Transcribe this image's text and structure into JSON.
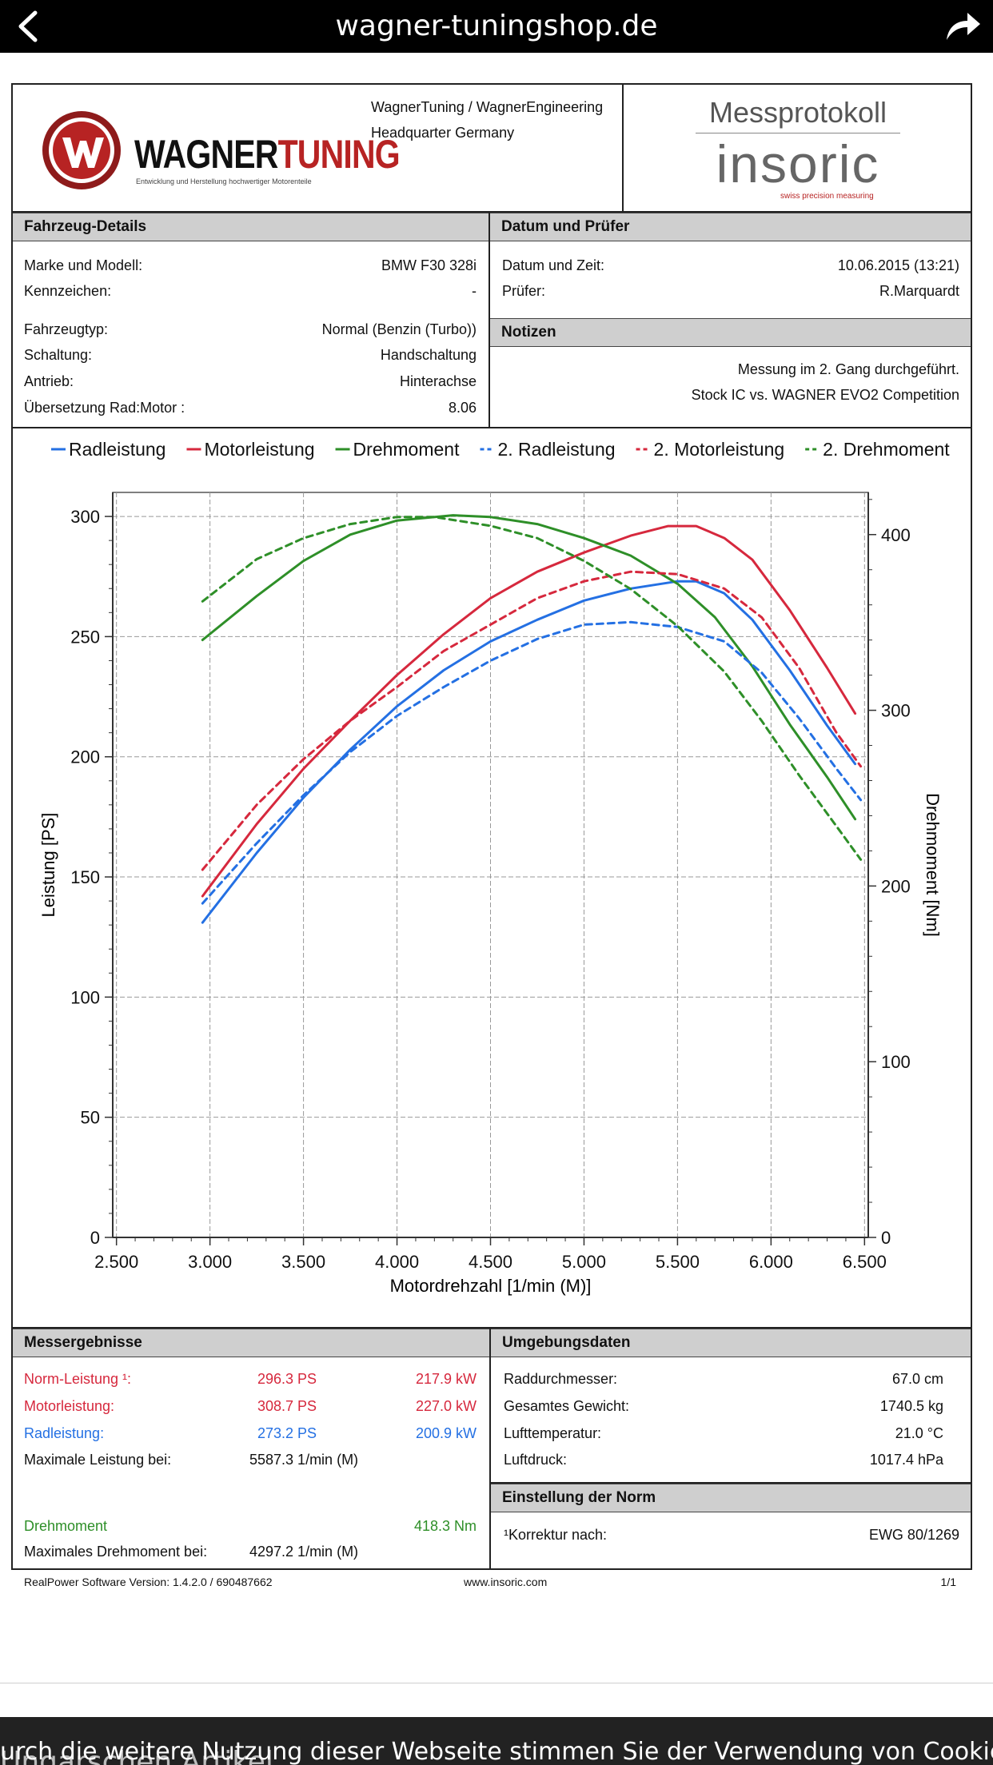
{
  "browser": {
    "domain": "wagner-tuningshop.de"
  },
  "header": {
    "logo_text_left": "WAGNER",
    "logo_text_right": "TUNING",
    "logo_tagline": "Entwicklung und Herstellung hochwertiger Motorenteile",
    "company_line1": "WagnerTuning / WagnerEngineering",
    "company_line2": "Headquarter Germany",
    "protocol_title": "Messprotokoll",
    "insoric_logo": "insoric",
    "insoric_tagline": "swiss precision measuring"
  },
  "vehicle": {
    "title": "Fahrzeug-Details",
    "rows": [
      {
        "label": "Marke und Modell:",
        "value": "BMW F30 328i"
      },
      {
        "label": "Kennzeichen:",
        "value": "-"
      },
      {
        "label": "Fahrzeugtyp:",
        "value": "Normal (Benzin (Turbo))"
      },
      {
        "label": "Schaltung:",
        "value": "Handschaltung"
      },
      {
        "label": "Antrieb:",
        "value": "Hinterachse"
      },
      {
        "label": "Übersetzung Rad:Motor :",
        "value": "8.06"
      }
    ]
  },
  "datum": {
    "title": "Datum und Prüfer",
    "rows": [
      {
        "label": "Datum und Zeit:",
        "value": "10.06.2015 (13:21)"
      },
      {
        "label": "Prüfer:",
        "value": "R.Marquardt"
      }
    ]
  },
  "notes": {
    "title": "Notizen",
    "line1": "Messung im 2. Gang durchgeführt.",
    "line2": "Stock IC vs.  WAGNER EVO2 Competition"
  },
  "chart_data": {
    "type": "line",
    "xlabel": "Motordrehzahl [1/min (M)]",
    "ylabel": "Leistung [PS]",
    "y2label": "Drehmoment [Nm]",
    "xlim": [
      2480,
      6520
    ],
    "ylim": [
      0,
      310
    ],
    "y2lim": [
      0,
      424
    ],
    "xticks": [
      "2.500",
      "3.000",
      "3.500",
      "4.000",
      "4.500",
      "5.000",
      "5.500",
      "6.000",
      "6.500"
    ],
    "xtick_values": [
      2500,
      3000,
      3500,
      4000,
      4500,
      5000,
      5500,
      6000,
      6500
    ],
    "yticks": [
      0,
      50,
      100,
      150,
      200,
      250,
      300
    ],
    "y2ticks": [
      0,
      100,
      200,
      300,
      400
    ],
    "grid": true,
    "legend_position": "top",
    "series": [
      {
        "name": "Radleistung",
        "color": "#2470e3",
        "dash": false,
        "axis": "left",
        "x": [
          2960,
          3250,
          3500,
          3750,
          4000,
          4250,
          4500,
          4750,
          5000,
          5250,
          5500,
          5600,
          5750,
          5900,
          6100,
          6300,
          6450
        ],
        "y": [
          131,
          160,
          183,
          203,
          221,
          236,
          248,
          257,
          265,
          270,
          273,
          273,
          268,
          257,
          236,
          213,
          197
        ]
      },
      {
        "name": "Motorleistung",
        "color": "#d6283d",
        "dash": false,
        "axis": "left",
        "x": [
          2960,
          3250,
          3500,
          3750,
          4000,
          4250,
          4500,
          4750,
          5000,
          5250,
          5450,
          5600,
          5750,
          5900,
          6100,
          6300,
          6450
        ],
        "y": [
          142,
          172,
          195,
          215,
          234,
          251,
          266,
          277,
          285,
          292,
          296,
          296,
          291,
          282,
          261,
          237,
          218
        ]
      },
      {
        "name": "Drehmoment",
        "color": "#2e8f28",
        "dash": false,
        "axis": "right",
        "x": [
          2960,
          3250,
          3500,
          3750,
          4000,
          4300,
          4500,
          4750,
          5000,
          5250,
          5500,
          5700,
          5900,
          6100,
          6300,
          6450
        ],
        "y": [
          340,
          365,
          385,
          400,
          408,
          411,
          410,
          406,
          398,
          388,
          372,
          353,
          325,
          292,
          262,
          238
        ]
      },
      {
        "name": "2. Radleistung",
        "color": "#2470e3",
        "dash": true,
        "axis": "left",
        "x": [
          2960,
          3250,
          3500,
          3750,
          4000,
          4250,
          4500,
          4750,
          5000,
          5250,
          5500,
          5750,
          5950,
          6150,
          6350,
          6480
        ],
        "y": [
          139,
          164,
          184,
          202,
          217,
          229,
          240,
          249,
          255,
          256,
          254,
          248,
          235,
          216,
          195,
          182
        ]
      },
      {
        "name": "2. Motorleistung",
        "color": "#d6283d",
        "dash": true,
        "axis": "left",
        "x": [
          2960,
          3250,
          3500,
          3750,
          4000,
          4250,
          4500,
          4750,
          5000,
          5250,
          5500,
          5750,
          5950,
          6150,
          6350,
          6480
        ],
        "y": [
          153,
          180,
          199,
          215,
          229,
          244,
          255,
          266,
          273,
          277,
          276,
          270,
          258,
          237,
          210,
          196
        ]
      },
      {
        "name": "2. Drehmoment",
        "color": "#2e8f28",
        "dash": true,
        "axis": "right",
        "x": [
          2960,
          3250,
          3500,
          3750,
          4000,
          4200,
          4500,
          4750,
          5000,
          5250,
          5500,
          5750,
          5950,
          6150,
          6350,
          6480
        ],
        "y": [
          362,
          386,
          398,
          406,
          410,
          410,
          405,
          398,
          385,
          369,
          348,
          322,
          294,
          263,
          234,
          215
        ]
      }
    ]
  },
  "results": {
    "title": "Messergebnisse",
    "norm": {
      "label": "Norm-Leistung ¹:",
      "ps": "296.3 PS",
      "kw": "217.9 kW"
    },
    "motor": {
      "label": "Motorleistung:",
      "ps": "308.7 PS",
      "kw": "227.0 kW"
    },
    "rad": {
      "label": "Radleistung:",
      "ps": "273.2 PS",
      "kw": "200.9 kW"
    },
    "maxpower": {
      "label": "Maximale Leistung bei:",
      "value": "5587.3 1/min (M)"
    },
    "torque": {
      "label": "Drehmoment",
      "value": "418.3 Nm"
    },
    "maxtorque": {
      "label": "Maximales Drehmoment bei:",
      "value": "4297.2 1/min (M)"
    }
  },
  "environment": {
    "title": "Umgebungsdaten",
    "rows": [
      {
        "label": "Raddurchmesser:",
        "value": "67.0 cm"
      },
      {
        "label": "Gesamtes Gewicht:",
        "value": "1740.5 kg"
      },
      {
        "label": "Lufttemperatur:",
        "value": "21.0 °C"
      },
      {
        "label": "Luftdruck:",
        "value": "1017.4 hPa"
      }
    ]
  },
  "norm_setting": {
    "title": "Einstellung der Norm",
    "label": "¹Korrektur nach:",
    "value": "EWG 80/1269"
  },
  "footer": {
    "software": "RealPower Software Version:  1.4.2.0  /  690487662",
    "website": "www.insoric.com",
    "page": "1/1"
  },
  "cookie_banner": {
    "behind_text": "Ungarschen Artikel",
    "text": "urch die weitere Nutzung dieser Webseite stimmen Sie der Verwendung von Cookie"
  }
}
